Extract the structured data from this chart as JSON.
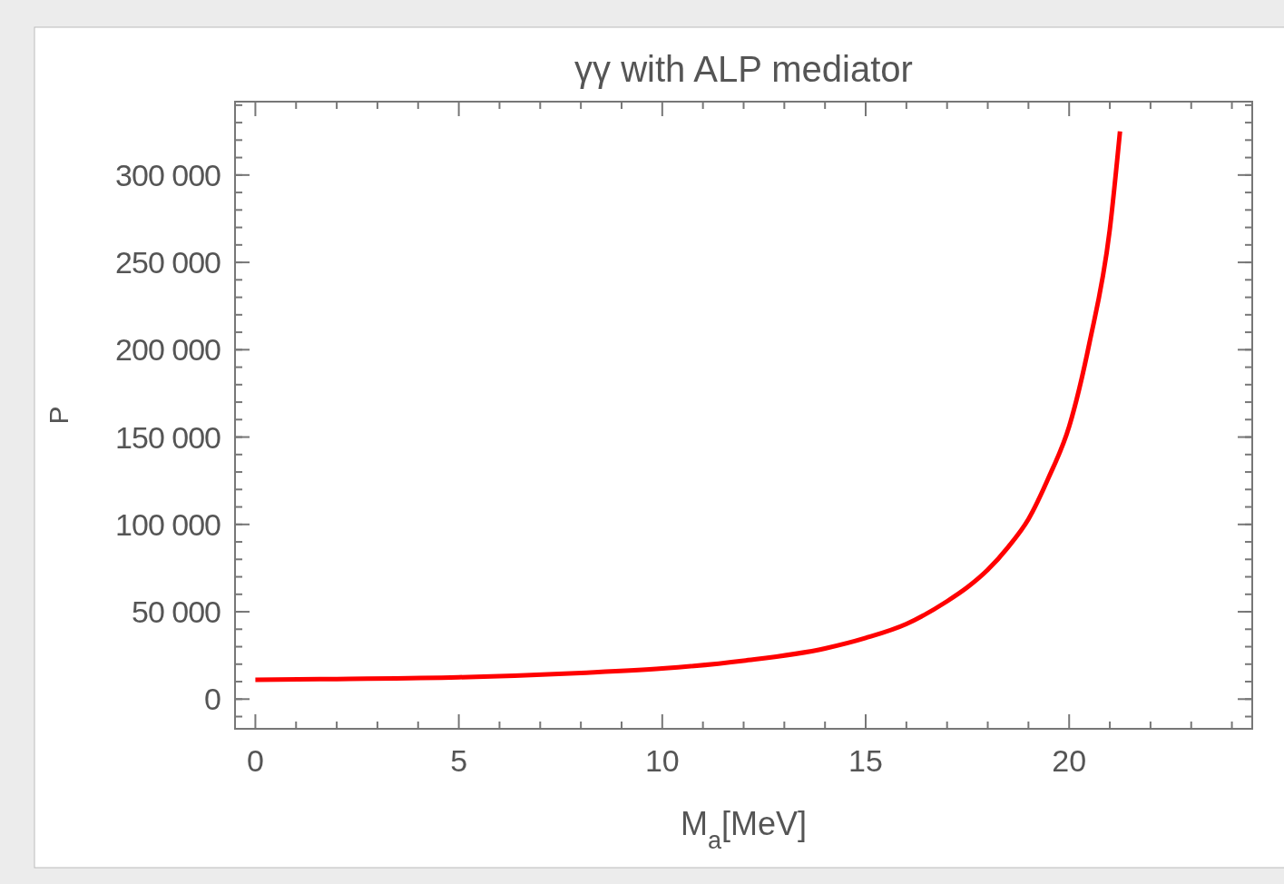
{
  "chart_data": {
    "type": "line",
    "title": "γγ with ALP mediator",
    "xlabel": "M$_{a}$[MeV]",
    "ylabel": "P",
    "series": [
      {
        "color": "#ff0000",
        "x": [
          0,
          2,
          5,
          8,
          10,
          12,
          14,
          15,
          16,
          17,
          17.5,
          18,
          18.5,
          19,
          19.5,
          20,
          20.5,
          21,
          21.25
        ],
        "values": [
          11000,
          11500,
          12500,
          15000,
          17500,
          22000,
          29000,
          35000,
          43000,
          56000,
          64000,
          74000,
          87000,
          103000,
          127000,
          156000,
          204000,
          269000,
          325000
        ]
      }
    ],
    "xlim": [
      -0.5,
      24.5
    ],
    "xticks": [
      0,
      5,
      10,
      15,
      20
    ],
    "ylim": [
      -17000,
      342000
    ],
    "yticks": [
      {
        "value": 0,
        "label": "0"
      },
      {
        "value": 50000,
        "label": "50 000"
      },
      {
        "value": 100000,
        "label": "100 000"
      },
      {
        "value": 150000,
        "label": "150 000"
      },
      {
        "value": 200000,
        "label": "200 000"
      },
      {
        "value": 250000,
        "label": "250 000"
      },
      {
        "value": 300000,
        "label": "300 000"
      }
    ],
    "grid": false,
    "marker": "none",
    "line_style": "solid"
  }
}
